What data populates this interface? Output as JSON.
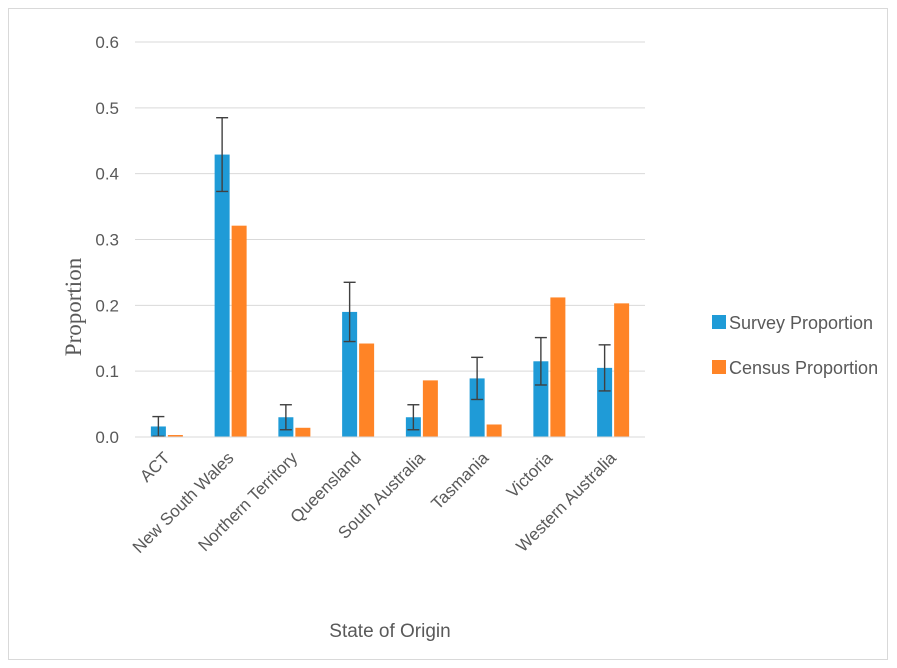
{
  "chart_data": {
    "type": "bar",
    "title": "",
    "xlabel": "State of Origin",
    "ylabel": "Proportion",
    "ylim": [
      0,
      0.6
    ],
    "yticks": [
      "0.0",
      "0.1",
      "0.2",
      "0.3",
      "0.4",
      "0.5",
      "0.6"
    ],
    "yticks_values": [
      0,
      0.1,
      0.2,
      0.3,
      0.4,
      0.5,
      0.6
    ],
    "grid": true,
    "legend_position": "right",
    "categories": [
      "ACT",
      "New South Wales",
      "Northern Territory",
      "Queensland",
      "South Australia",
      "Tasmania",
      "Victoria",
      "Western Australia"
    ],
    "series": [
      {
        "name": "Survey Proportion",
        "color": "#1f9bd7",
        "values": [
          0.016,
          0.429,
          0.03,
          0.19,
          0.03,
          0.089,
          0.115,
          0.105
        ],
        "error_bars": [
          0.015,
          0.056,
          0.019,
          0.045,
          0.019,
          0.032,
          0.036,
          0.035
        ]
      },
      {
        "name": "Census Proportion",
        "color": "#ff8426",
        "values": [
          0.003,
          0.321,
          0.014,
          0.142,
          0.086,
          0.019,
          0.212,
          0.203
        ]
      }
    ]
  }
}
